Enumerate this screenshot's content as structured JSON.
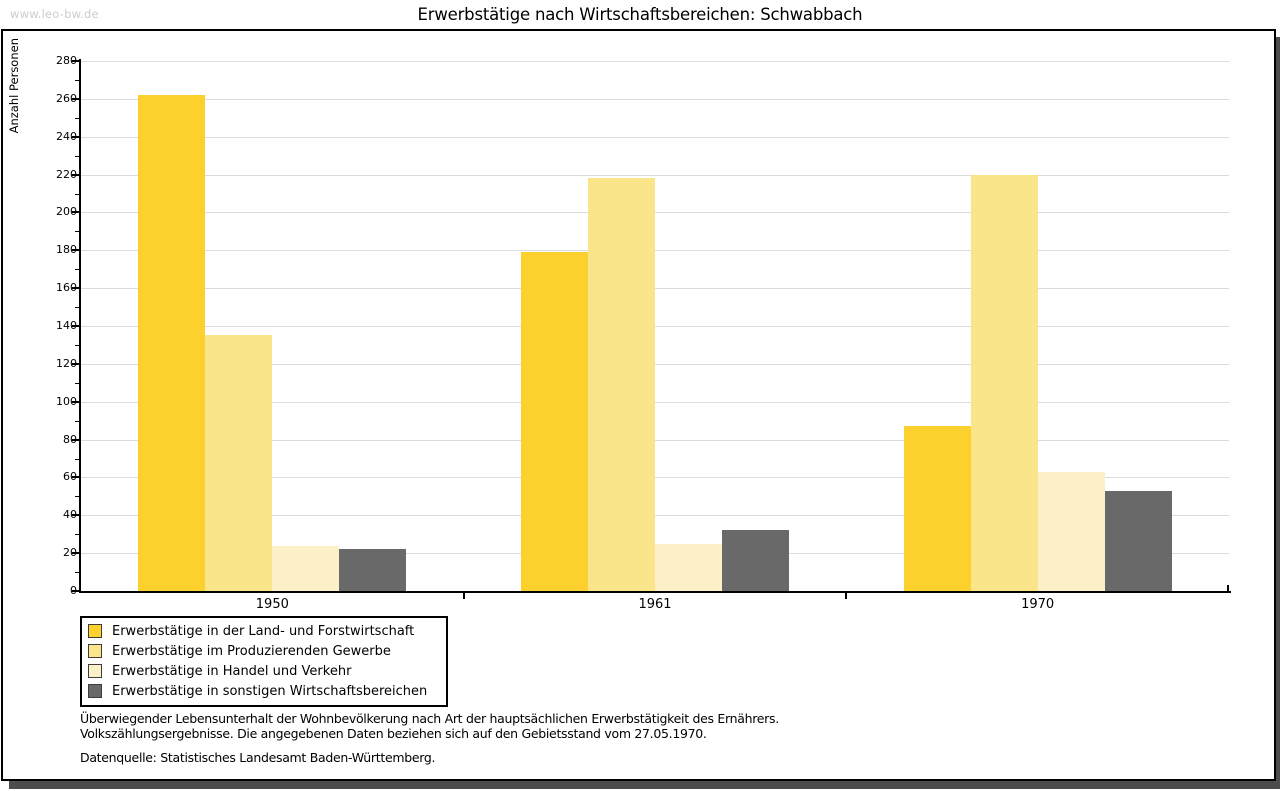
{
  "header": {
    "watermark": "www.leo-bw.de",
    "title": "Erwerbstätige nach Wirtschaftsbereichen: Schwabbach"
  },
  "chart_data": {
    "type": "bar",
    "title": "Erwerbstätige nach Wirtschaftsbereichen: Schwabbach",
    "xlabel": "",
    "ylabel": "Anzahl Personen",
    "categories": [
      "1950",
      "1961",
      "1970"
    ],
    "series": [
      {
        "name": "Erwerbstätige in der Land- und Forstwirtschaft",
        "color": "#fcd12d",
        "values": [
          262,
          179,
          87
        ]
      },
      {
        "name": "Erwerbstätige im Produzierenden Gewerbe",
        "color": "#fbe58a",
        "values": [
          135,
          218,
          220
        ]
      },
      {
        "name": "Erwerbstätige in Handel und Verkehr",
        "color": "#fbf0c7",
        "values": [
          24,
          25,
          63
        ]
      },
      {
        "name": "Erwerbstätige in sonstigen Wirtschaftsbereichen",
        "color": "#696969",
        "values": [
          22,
          32,
          53
        ]
      }
    ],
    "ylim": [
      0,
      280
    ],
    "ytick_step": 20,
    "ytick_minor": 10,
    "grid": true,
    "legend_position": "bottom-left"
  },
  "notes": {
    "line1": "Überwiegender Lebensunterhalt der Wohnbevölkerung nach Art der hauptsächlichen Erwerbstätigkeit des Ernährers.",
    "line2": "Volkszählungsergebnisse. Die angegebenen Daten beziehen sich auf den Gebietsstand vom 27.05.1970.",
    "source": "Datenquelle: Statistisches Landesamt Baden-Württemberg."
  },
  "colors": {
    "grid": "#dcdcdc",
    "axis": "#000000",
    "panel_border": "#000000",
    "shadow": "#4d4d4d",
    "watermark": "#cccccc",
    "text": "#000000"
  }
}
